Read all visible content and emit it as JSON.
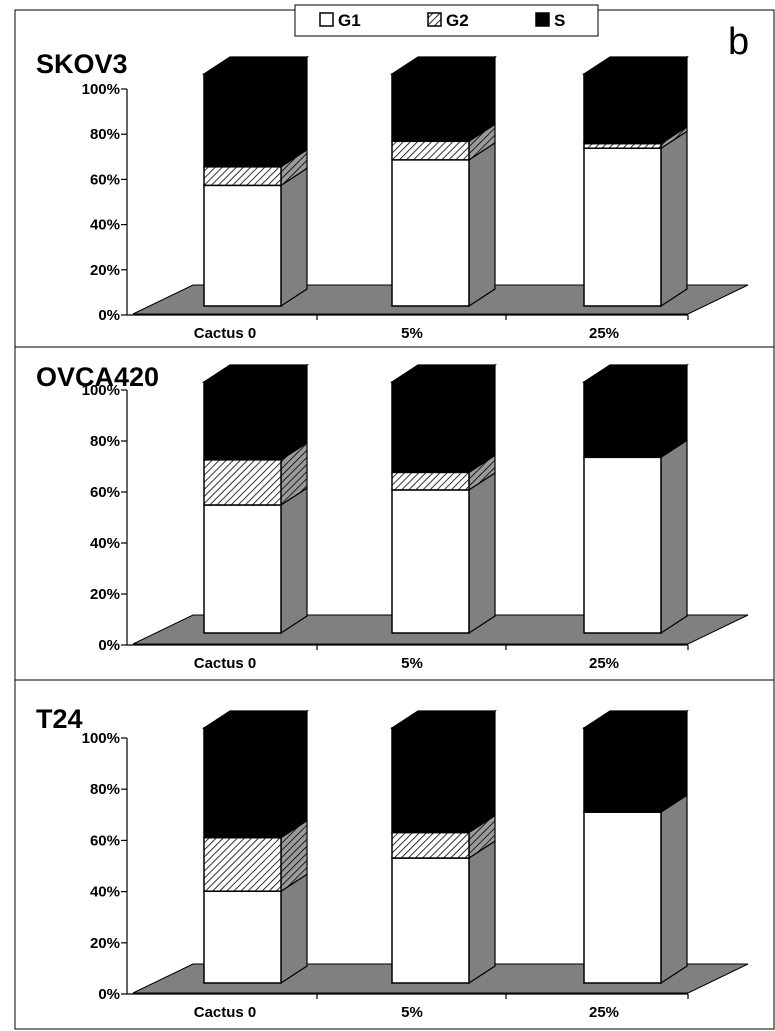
{
  "figure": {
    "panel_letter": "b",
    "legend": [
      {
        "name": "G1",
        "pattern": "white"
      },
      {
        "name": "G2",
        "pattern": "hatch"
      },
      {
        "name": "S",
        "pattern": "black"
      }
    ]
  },
  "colors": {
    "g1_fill": "#ffffff",
    "s_fill": "#000000",
    "side_face": "#808080",
    "floor": "#808080",
    "outline": "#000000"
  },
  "chart_data": [
    {
      "type": "bar",
      "stacked": true,
      "percent": true,
      "title": "SKOV3",
      "categories": [
        "Cactus 0",
        "5%",
        "25%"
      ],
      "series": [
        {
          "name": "G1",
          "values": [
            52,
            63,
            68
          ]
        },
        {
          "name": "G2",
          "values": [
            8,
            8,
            2
          ]
        },
        {
          "name": "S",
          "values": [
            40,
            29,
            30
          ]
        }
      ],
      "ylim": [
        0,
        100
      ],
      "yticks": [
        "0%",
        "20%",
        "40%",
        "60%",
        "80%",
        "100%"
      ]
    },
    {
      "type": "bar",
      "stacked": true,
      "percent": true,
      "title": "OVCA420",
      "categories": [
        "Cactus 0",
        "5%",
        "25%"
      ],
      "series": [
        {
          "name": "G1",
          "values": [
            51,
            57,
            70
          ]
        },
        {
          "name": "G2",
          "values": [
            18,
            7,
            0
          ]
        },
        {
          "name": "S",
          "values": [
            31,
            36,
            30
          ]
        }
      ],
      "ylim": [
        0,
        100
      ],
      "yticks": [
        "0%",
        "20%",
        "40%",
        "60%",
        "80%",
        "100%"
      ]
    },
    {
      "type": "bar",
      "stacked": true,
      "percent": true,
      "title": "T24",
      "categories": [
        "Cactus 0",
        "5%",
        "25%"
      ],
      "series": [
        {
          "name": "G1",
          "values": [
            36,
            49,
            67
          ]
        },
        {
          "name": "G2",
          "values": [
            21,
            10,
            0
          ]
        },
        {
          "name": "S",
          "values": [
            43,
            41,
            33
          ]
        }
      ],
      "ylim": [
        0,
        100
      ],
      "yticks": [
        "0%",
        "20%",
        "40%",
        "60%",
        "80%",
        "100%"
      ]
    }
  ]
}
